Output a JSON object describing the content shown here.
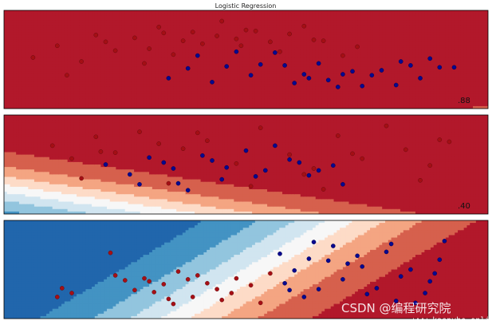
{
  "figure": {
    "watermark_main": "CSDN @编程研究院",
    "watermark_url": "www.kaspyho.online"
  },
  "colors": {
    "red_dark": "#b2182b",
    "red_mid": "#d6604d",
    "red_light": "#f4a582",
    "red_pale": "#fddbc7",
    "neutral": "#f7f7f7",
    "blue_pale": "#d1e5f0",
    "blue_light": "#92c5de",
    "blue_mid": "#4393c3",
    "blue_dark": "#2166ac",
    "point_red": "#a50f15",
    "point_blue": "#08088f",
    "point_blue_test": "#6a6ad0",
    "point_red_test": "#e06060"
  },
  "chart_data": [
    {
      "type": "scatter",
      "title": "Logistic Regression",
      "score": ".88",
      "xlabel": "",
      "ylabel": "",
      "xlim": [
        0,
        10
      ],
      "ylim": [
        0,
        10
      ],
      "grid": false,
      "decision_field": {
        "intercept": 5.6,
        "slope_x": -0.35,
        "slope_y": 0.85
      },
      "series": [
        {
          "x": [
            0.6,
            1.1,
            1.6,
            1.9,
            2.3,
            2.7,
            3.0,
            3.2,
            3.5,
            3.9,
            4.1,
            4.5,
            4.8,
            5.2,
            5.5,
            5.9,
            6.2,
            6.6,
            7.0,
            7.3,
            1.3,
            2.1,
            2.9,
            3.7,
            4.4,
            5.0,
            5.7,
            6.4,
            3.3,
            4.9
          ],
          "y": [
            5.2,
            6.4,
            4.8,
            7.5,
            5.9,
            7.2,
            6.1,
            8.3,
            5.5,
            7.8,
            6.6,
            8.9,
            7.1,
            7.9,
            6.8,
            7.6,
            8.4,
            6.9,
            5.4,
            6.3,
            3.4,
            6.8,
            4.6,
            6.9,
            7.4,
            8.0,
            5.8,
            7.0,
            7.7,
            6.4
          ]
        },
        {
          "x": [
            3.4,
            4.0,
            4.6,
            5.1,
            5.6,
            6.0,
            6.5,
            7.0,
            7.4,
            7.8,
            8.2,
            8.6,
            9.0,
            4.3,
            5.3,
            6.2,
            6.9,
            7.6,
            8.1,
            8.8,
            3.8,
            4.8,
            5.8,
            6.7,
            7.2,
            8.4,
            9.3,
            6.3
          ],
          "y": [
            3.1,
            5.4,
            4.3,
            3.4,
            5.7,
            2.6,
            4.6,
            3.5,
            2.3,
            3.9,
            4.8,
            3.1,
            4.2,
            2.7,
            4.5,
            3.5,
            2.2,
            3.4,
            2.4,
            5.1,
            4.1,
            5.8,
            4.4,
            2.9,
            3.8,
            4.4,
            4.2,
            3.1
          ]
        }
      ]
    },
    {
      "type": "scatter",
      "score": ".40",
      "xlabel": "",
      "ylabel": "",
      "xlim": [
        0,
        10
      ],
      "ylim": [
        0,
        10
      ],
      "grid": false,
      "decision_field": {
        "intercept": -1.6,
        "slope_x": 0.45,
        "slope_y": 0.62
      },
      "series": [
        {
          "x": [
            1.0,
            1.4,
            1.9,
            2.3,
            2.8,
            3.2,
            3.7,
            4.2,
            4.8,
            5.3,
            5.9,
            6.4,
            6.9,
            7.4,
            7.9,
            8.3,
            8.8,
            9.2,
            1.6,
            3.4,
            5.1,
            6.6,
            7.2,
            8.6,
            2.0,
            4.0,
            9.0,
            6.2
          ],
          "y": [
            6.9,
            5.6,
            7.8,
            6.2,
            8.3,
            7.1,
            6.6,
            7.4,
            5.1,
            8.7,
            6.0,
            4.6,
            7.9,
            5.6,
            8.9,
            6.5,
            4.9,
            7.3,
            3.6,
            3.1,
            2.8,
            2.5,
            6.1,
            3.4,
            6.3,
            8.2,
            7.5,
            4.0
          ]
        },
        {
          "x": [
            2.1,
            2.6,
            3.0,
            3.5,
            4.1,
            4.5,
            5.0,
            5.4,
            5.9,
            6.3,
            6.8,
            3.8,
            4.6,
            5.6,
            6.1,
            7.0,
            2.8,
            3.3,
            4.3,
            5.2,
            6.5,
            3.6
          ],
          "y": [
            5.0,
            4.0,
            5.7,
            4.6,
            5.9,
            3.5,
            6.4,
            4.4,
            5.5,
            3.9,
            4.9,
            2.4,
            4.7,
            6.9,
            5.2,
            3.0,
            3.0,
            5.2,
            5.4,
            3.8,
            4.4,
            3.1
          ]
        }
      ]
    },
    {
      "type": "scatter",
      "xlabel": "",
      "ylabel": "",
      "xlim": [
        0,
        10
      ],
      "ylim": [
        0,
        10
      ],
      "grid": false,
      "decision_field": {
        "intercept": -2.9,
        "slope_x": 0.82,
        "slope_y": -0.28
      },
      "series": [
        {
          "x": [
            1.1,
            1.4,
            2.3,
            2.7,
            2.9,
            3.1,
            3.3,
            3.5,
            3.6,
            3.9,
            4.2,
            4.5,
            4.8,
            5.3,
            5.5,
            2.2,
            3.0,
            3.4,
            4.0,
            4.7,
            1.2,
            2.5,
            3.8,
            4.4,
            5.1
          ],
          "y": [
            2.2,
            2.6,
            4.4,
            2.9,
            4.1,
            2.7,
            3.5,
            1.5,
            4.8,
            2.2,
            3.6,
            1.9,
            4.1,
            1.6,
            4.6,
            6.7,
            3.8,
            2.0,
            4.4,
            2.6,
            3.1,
            3.9,
            4.0,
            3.0,
            3.4
          ]
        },
        {
          "x": [
            5.7,
            6.0,
            6.4,
            6.7,
            7.0,
            7.3,
            7.7,
            8.0,
            8.4,
            8.7,
            9.0,
            5.8,
            6.2,
            6.8,
            7.4,
            8.1,
            8.9,
            6.5,
            7.9,
            8.5,
            6.3,
            7.5,
            8.8,
            5.9,
            7.1,
            8.2,
            9.1
          ],
          "y": [
            6.6,
            4.9,
            7.8,
            5.9,
            4.0,
            6.4,
            3.1,
            7.6,
            5.0,
            2.6,
            6.0,
            3.6,
            2.2,
            7.4,
            5.3,
            1.8,
            4.6,
            3.0,
            6.8,
            1.6,
            6.1,
            2.5,
            3.8,
            2.9,
            5.6,
            4.3,
            7.9
          ]
        }
      ]
    }
  ]
}
